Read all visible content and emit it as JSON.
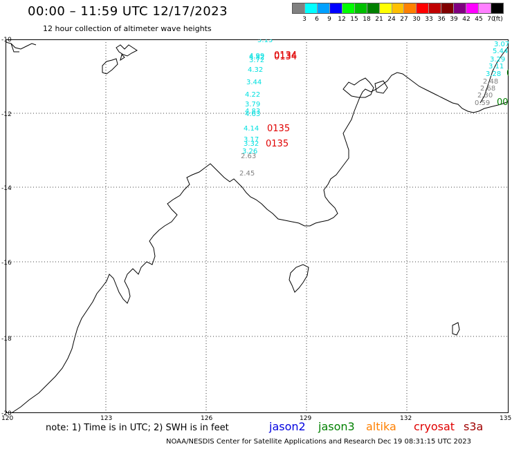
{
  "header": {
    "title": "00:00 – 11:59 UTC 12/17/2023",
    "subtitle": "12 hour collection of altimeter wave heights"
  },
  "legend": {
    "unit": "(ft)",
    "colors": [
      "#808080",
      "#00ffff",
      "#00a0ff",
      "#0000ff",
      "#00ff00",
      "#00c000",
      "#008000",
      "#ffff00",
      "#ffc000",
      "#ff8000",
      "#ff0000",
      "#c00000",
      "#800000",
      "#800080",
      "#ff00ff",
      "#ff80ff",
      "#000000"
    ],
    "labels": [
      "3",
      "6",
      "9",
      "12",
      "15",
      "18",
      "21",
      "24",
      "27",
      "30",
      "33",
      "36",
      "39",
      "42",
      "45",
      "70"
    ]
  },
  "map": {
    "lon_ticks": [
      "120",
      "123",
      "126",
      "129",
      "132",
      "135"
    ],
    "lat_ticks": [
      "-10",
      "-12",
      "-14",
      "-16",
      "-18",
      "-20"
    ]
  },
  "wave_heights": [
    {
      "text": "5.13",
      "color": "#00e0e0"
    },
    {
      "text": "4.99",
      "color": "#00e0e0"
    },
    {
      "text": "4.82",
      "color": "#00e0e0"
    },
    {
      "text": "3.72",
      "color": "#00e0e0"
    },
    {
      "text": "4.32",
      "color": "#00e0e0"
    },
    {
      "text": "3.44",
      "color": "#00e0e0"
    },
    {
      "text": "4.22",
      "color": "#00e0e0"
    },
    {
      "text": "3.79",
      "color": "#00e0e0"
    },
    {
      "text": "4.83",
      "color": "#00e0e0"
    },
    {
      "text": "4.63",
      "color": "#00e0e0"
    },
    {
      "text": "4.14",
      "color": "#00e0e0"
    },
    {
      "text": "3.17",
      "color": "#00e0e0"
    },
    {
      "text": "3.32",
      "color": "#00e0e0"
    },
    {
      "text": "3.26",
      "color": "#00e0e0"
    },
    {
      "text": "2.63",
      "color": "#808080"
    },
    {
      "text": "2.45",
      "color": "#808080"
    },
    {
      "text": "3.07",
      "color": "#00e0e0"
    },
    {
      "text": "5.44",
      "color": "#00e0e0"
    },
    {
      "text": "3.29",
      "color": "#00e0e0"
    },
    {
      "text": "3.11",
      "color": "#00e0e0"
    },
    {
      "text": "3.28",
      "color": "#00e0e0"
    },
    {
      "text": "2.48",
      "color": "#808080"
    },
    {
      "text": "2.68",
      "color": "#808080"
    },
    {
      "text": "2.30",
      "color": "#808080"
    },
    {
      "text": "0.59",
      "color": "#808080"
    }
  ],
  "pass_labels": [
    {
      "text": "0134",
      "color": "#e00000"
    },
    {
      "text": "0134",
      "color": "#e00000"
    },
    {
      "text": "0135",
      "color": "#e00000"
    },
    {
      "text": "0135",
      "color": "#e00000"
    },
    {
      "text": "0",
      "color": "#008000"
    },
    {
      "text": "00",
      "color": "#008000"
    }
  ],
  "footer": {
    "note": "note:  1) Time is in UTC;  2) SWH is in feet",
    "satellites": [
      {
        "name": "jason2",
        "color": "#0000e0"
      },
      {
        "name": "jason3",
        "color": "#008000"
      },
      {
        "name": "altika",
        "color": "#ff8000"
      },
      {
        "name": "cryosat",
        "color": "#e00000"
      },
      {
        "name": "s3a",
        "color": "#a00000"
      }
    ],
    "credit": "NOAA/NESDIS Center for Satellite Applications and Research    Dec 19 08:31:15 UTC 2023"
  }
}
